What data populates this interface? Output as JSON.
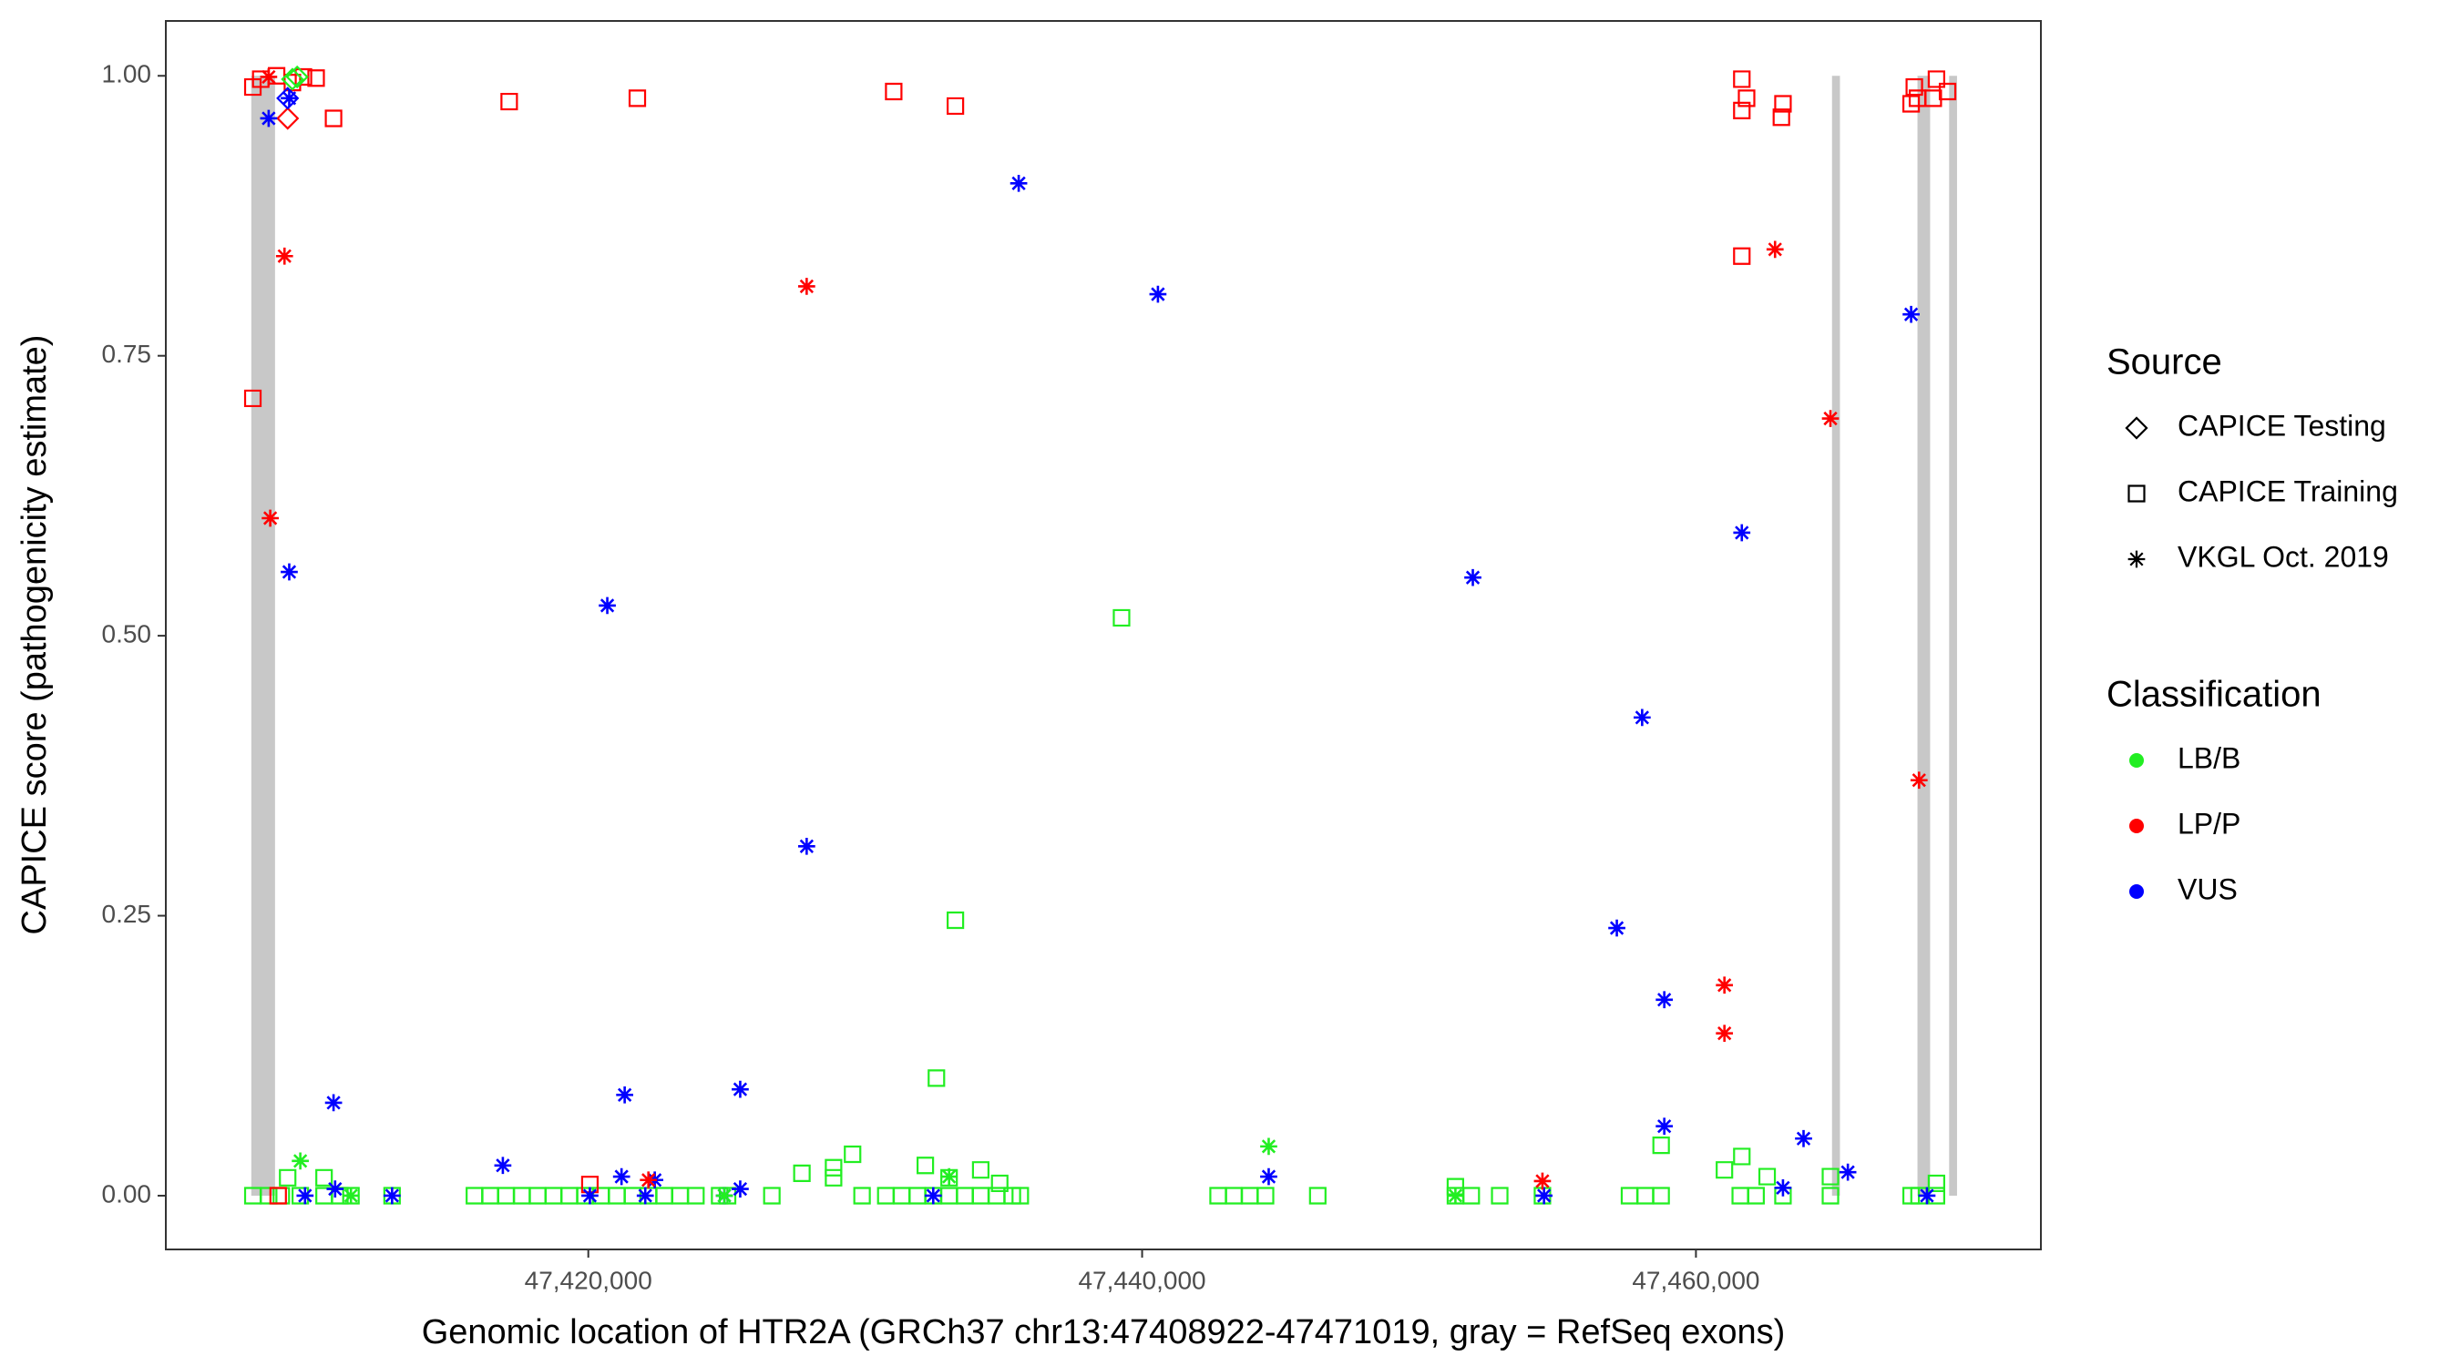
{
  "chart_data": {
    "type": "scatter",
    "x_label": "Genomic location of HTR2A (GRCh37 chr13:47408922-47471019, gray = RefSeq exons)",
    "y_label": "CAPICE score (pathogenicity estimate)",
    "xlim": [
      47404743,
      47472457
    ],
    "ylim": [
      -0.048,
      1.049
    ],
    "xticks": [
      {
        "value": 47420000,
        "label": "47,420,000"
      },
      {
        "value": 47440000,
        "label": "47,440,000"
      },
      {
        "value": 47460000,
        "label": "47,460,000"
      }
    ],
    "yticks": [
      {
        "value": 0,
        "label": "0.00"
      },
      {
        "value": 0.25,
        "label": "0.25"
      },
      {
        "value": 0.5,
        "label": "0.50"
      },
      {
        "value": 0.75,
        "label": "0.75"
      },
      {
        "value": 1,
        "label": "1.00"
      }
    ],
    "grid": false,
    "exon_color": "#c8c8c8",
    "exons": [
      {
        "start": 47407829,
        "end": 47408686
      },
      {
        "start": 47464914,
        "end": 47465200
      },
      {
        "start": 47468000,
        "end": 47468457
      },
      {
        "start": 47469143,
        "end": 47469429
      }
    ],
    "legend": {
      "source": {
        "title": "Source",
        "items": [
          {
            "label": "CAPICE Testing",
            "shape": "diamond"
          },
          {
            "label": "CAPICE Training",
            "shape": "square"
          },
          {
            "label": "VKGL Oct. 2019",
            "shape": "asterisk"
          }
        ]
      },
      "classification": {
        "title": "Classification",
        "items": [
          {
            "label": "LB/B",
            "color": "#22ee22"
          },
          {
            "label": "LP/P",
            "color": "#ff0000"
          },
          {
            "label": "VUS",
            "color": "#0000ff"
          }
        ]
      }
    },
    "series": [
      {
        "shape": "square",
        "color": "#22ee22",
        "x": [
          47407886,
          47408457,
          47408914,
          47409600,
          47410457,
          47411029,
          47411429,
          47412914,
          47415886,
          47416457,
          47417029,
          47417600,
          47418171,
          47418743,
          47419314,
          47419886,
          47420457,
          47421029,
          47421600,
          47422171,
          47422743,
          47423314,
          47423886,
          47424743,
          47425029,
          47426629,
          47429886,
          47430743,
          47431314,
          47431886,
          47432457,
          47433029,
          47433600,
          47434171,
          47434743,
          47435314,
          47435600,
          47442743,
          47443314,
          47443886,
          47444457,
          47446343,
          47451314,
          47451886,
          47452914,
          47454457,
          47457600,
          47458171,
          47458743,
          47461600,
          47462171,
          47463143,
          47464857,
          47467771,
          47468057,
          47468686,
          47409143,
          47410457,
          47427714,
          47428857,
          47428857,
          47429543,
          47432171,
          47432571,
          47433257,
          47434171,
          47439257,
          47451314,
          47458743,
          47461029,
          47461657,
          47462571,
          47464857,
          47468686,
          47433029,
          47434857
        ],
        "y": [
          0,
          0,
          0,
          0,
          0,
          0,
          0,
          0,
          0,
          0,
          0,
          0,
          0,
          0,
          0,
          0,
          0,
          0,
          0,
          0,
          0,
          0,
          0,
          0,
          0,
          0,
          0,
          0,
          0,
          0,
          0,
          0,
          0,
          0,
          0,
          0,
          0,
          0,
          0,
          0,
          0,
          0,
          0,
          0,
          0,
          0,
          0,
          0,
          0,
          0,
          0,
          0,
          0,
          0,
          0,
          0,
          0.016,
          0.016,
          0.02,
          0.016,
          0.025,
          0.037,
          0.027,
          0.105,
          0.246,
          0.023,
          0.516,
          0.008,
          0.045,
          0.023,
          0.035,
          0.017,
          0.017,
          0.011,
          0.016,
          0.011
        ]
      },
      {
        "shape": "square",
        "color": "#ff0000",
        "x": [
          47407886,
          47407886,
          47408171,
          47408743,
          47409314,
          47409714,
          47410171,
          47410800,
          47417143,
          47421771,
          47431029,
          47433257,
          47461657,
          47461829,
          47461657,
          47463143,
          47463086,
          47461657,
          47467886,
          47468000,
          47467771,
          47468686,
          47469086,
          47468571,
          47420057,
          47408800
        ],
        "y": [
          0.712,
          0.99,
          0.997,
          1.0,
          0.994,
          0.999,
          0.998,
          0.962,
          0.977,
          0.98,
          0.986,
          0.973,
          0.997,
          0.98,
          0.969,
          0.975,
          0.963,
          0.839,
          0.99,
          0.98,
          0.975,
          0.997,
          0.986,
          0.98,
          0.01,
          0
        ]
      },
      {
        "shape": "diamond",
        "color": "#22ee22",
        "x": [
          47409314,
          47409486
        ],
        "y": [
          0.997,
          0.999
        ]
      },
      {
        "shape": "diamond",
        "color": "#ff0000",
        "x": [
          47409143
        ],
        "y": [
          0.962
        ]
      },
      {
        "shape": "diamond",
        "color": "#0000ff",
        "x": [
          47409143
        ],
        "y": [
          0.98
        ]
      },
      {
        "shape": "asterisk",
        "color": "#0000ff",
        "x": [
          47408457,
          47409200,
          47409200,
          47410800,
          47410857,
          47412914,
          47409771,
          47420686,
          47416914,
          47420057,
          47421314,
          47421200,
          47422400,
          47422057,
          47425486,
          47424914,
          47425486,
          47427886,
          47435543,
          47440571,
          47444571,
          47451943,
          47457143,
          47458057,
          47458857,
          47458857,
          47461657,
          47463143,
          47463886,
          47465486,
          47467771,
          47468343,
          47454514,
          47432457
        ],
        "y": [
          0.962,
          0.98,
          0.557,
          0.083,
          0.006,
          0,
          0,
          0.527,
          0.027,
          0,
          0.09,
          0.017,
          0.014,
          0,
          0.095,
          0,
          0.006,
          0.312,
          0.904,
          0.805,
          0.017,
          0.552,
          0.239,
          0.427,
          0.175,
          0.062,
          0.592,
          0.007,
          0.051,
          0.021,
          0.787,
          0,
          0,
          0
        ]
      },
      {
        "shape": "asterisk",
        "color": "#ff0000",
        "x": [
          47409029,
          47408514,
          47427886,
          47462857,
          47464857,
          47468057,
          47461029,
          47461029,
          47454457,
          47408457,
          47422171
        ],
        "y": [
          0.839,
          0.605,
          0.812,
          0.845,
          0.694,
          0.371,
          0.188,
          0.145,
          0.013,
          0.999,
          0.014
        ]
      },
      {
        "shape": "asterisk",
        "color": "#22ee22",
        "x": [
          47409600,
          47444571,
          47433029,
          47451314,
          47424914,
          47411429
        ],
        "y": [
          0.031,
          0.044,
          0.017,
          0,
          0,
          0
        ]
      }
    ]
  }
}
